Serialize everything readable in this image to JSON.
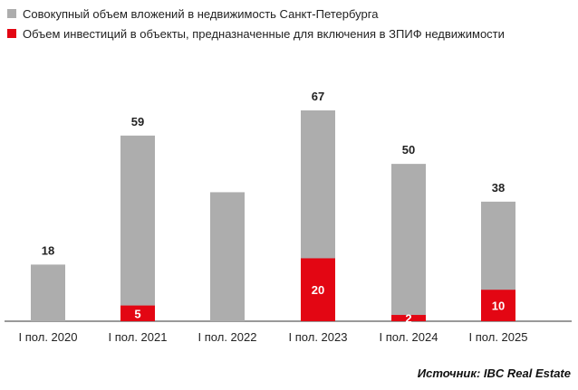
{
  "legend": {
    "items": [
      {
        "label": "Совокупный объем вложений в недвижимость Санкт-Петербурга",
        "color": "#adadad"
      },
      {
        "label": "Объем инвестиций в объекты, предназначенные для включения в ЗПИФ недвижимости",
        "color": "#e30613"
      }
    ]
  },
  "chart_data": {
    "type": "bar",
    "categories": [
      "I пол. 2020",
      "I пол. 2021",
      "I пол. 2022",
      "I пол. 2023",
      "I пол. 2024",
      "I пол. 2025"
    ],
    "series": [
      {
        "name": "Совокупный объем вложений в недвижимость Санкт-Петербурга",
        "values": [
          18,
          59,
          41,
          67,
          50,
          38
        ],
        "labels": [
          "18",
          "59",
          "",
          "67",
          "50",
          "38"
        ],
        "color": "#adadad"
      },
      {
        "name": "Объем инвестиций в объекты, предназначенные для включения в ЗПИФ недвижимости",
        "values": [
          0,
          5,
          0,
          20,
          2,
          10
        ],
        "labels": [
          "",
          "5",
          "",
          "20",
          "2",
          "10"
        ],
        "color": "#e30613"
      }
    ],
    "overlay": true,
    "ylim": [
      0,
      67
    ],
    "grid": false,
    "legend_position": "top-left"
  },
  "source": "Источник: IBC Real Estate"
}
